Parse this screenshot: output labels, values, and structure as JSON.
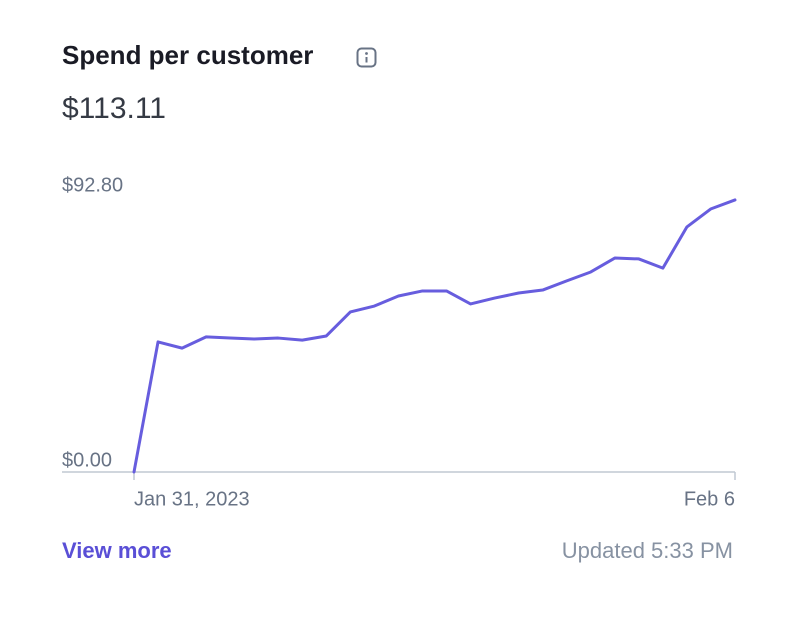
{
  "chart_data": {
    "type": "line",
    "title": "Spend per customer",
    "subtitle": "$113.11",
    "categories": [
      "Jan 31, 2023",
      null,
      null,
      null,
      null,
      null,
      null,
      null,
      null,
      null,
      null,
      null,
      null,
      null,
      null,
      null,
      null,
      null,
      null,
      null,
      null,
      null,
      null,
      null,
      null,
      "Feb 6"
    ],
    "values": [
      0,
      43.9,
      41.8,
      45.6,
      45.2,
      44.9,
      45.2,
      44.5,
      45.9,
      54.0,
      56.0,
      59.4,
      61.1,
      61.1,
      56.7,
      58.7,
      60.4,
      61.4,
      64.5,
      67.5,
      72.2,
      71.9,
      68.8,
      82.7,
      88.8,
      91.8
    ],
    "color": "#675dde",
    "ylim": [
      0,
      92.8
    ],
    "yticks": [
      {
        "value": 0,
        "label": "$0.00"
      },
      {
        "value": 92.8,
        "label": "$92.80"
      }
    ],
    "grid": false,
    "link": "View more",
    "footnote": "Updated 5:33 PM"
  }
}
